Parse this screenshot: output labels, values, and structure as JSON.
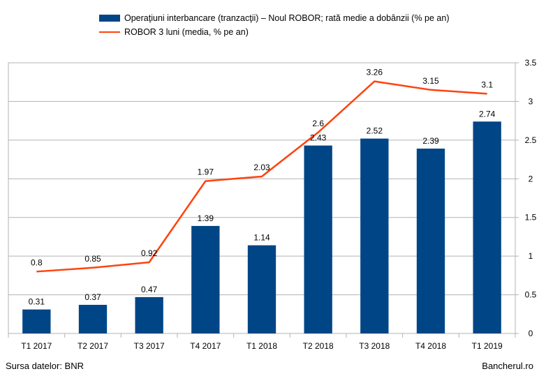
{
  "chart_data": {
    "type": "bar",
    "categories": [
      "T1 2017",
      "T2 2017",
      "T3 2017",
      "T4 2017",
      "T1 2018",
      "T2 2018",
      "T3 2018",
      "T4 2018",
      "T1 2019"
    ],
    "series": [
      {
        "name": "Operaţiuni interbancare (tranzacţii) – Noul ROBOR; rată medie a dobânzii (% pe an)",
        "type": "bar",
        "color": "#004586",
        "values": [
          0.31,
          0.37,
          0.47,
          1.39,
          1.14,
          2.43,
          2.52,
          2.39,
          2.74
        ]
      },
      {
        "name": "ROBOR 3 luni (media, % pe an)",
        "type": "line",
        "color": "#ff420e",
        "values": [
          0.8,
          0.85,
          0.92,
          1.97,
          2.03,
          2.6,
          3.26,
          3.15,
          3.1
        ]
      }
    ],
    "ylim": [
      0,
      3.5
    ],
    "yticks": [
      "0",
      "0.5",
      "1",
      "1.5",
      "2",
      "2.5",
      "3",
      "3.5"
    ],
    "y_axis_side": "right",
    "grid": true,
    "legend": "top-center",
    "title": "",
    "xlabel": "",
    "ylabel": ""
  },
  "footer": {
    "source": "Sursa datelor: BNR",
    "brand": "Bancherul.ro"
  }
}
